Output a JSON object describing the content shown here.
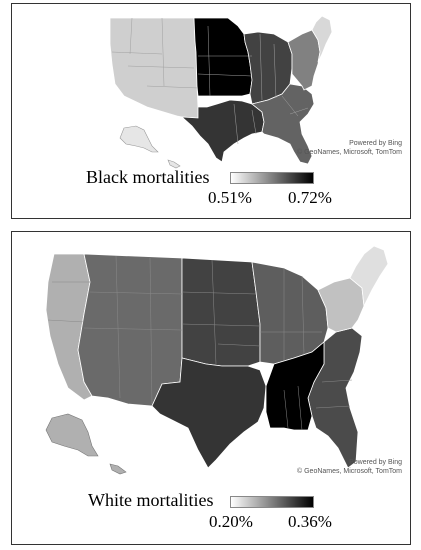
{
  "maps": [
    {
      "legend_title": "Black mortalities",
      "legend_min": "0.51%",
      "legend_max": "0.72%",
      "credit_line1": "Powered by Bing",
      "credit_line2": "© GeoNames, Microsoft, TomTom",
      "regions": [
        {
          "name": "West",
          "level": 0.12
        },
        {
          "name": "Upper Midwest",
          "level": 1.0
        },
        {
          "name": "Great Lakes",
          "level": 0.72
        },
        {
          "name": "Texas / Gulf",
          "level": 0.78
        },
        {
          "name": "Southeast",
          "level": 0.58
        },
        {
          "name": "Northeast",
          "level": 0.45
        },
        {
          "name": "New England",
          "level": 0.08
        }
      ]
    },
    {
      "legend_title": "White mortalities",
      "legend_min": "0.20%",
      "legend_max": "0.36%",
      "credit_line1": "Powered by Bing",
      "credit_line2": "© GeoNames, Microsoft, TomTom",
      "regions": [
        {
          "name": "Pacific Coast",
          "level": 0.25
        },
        {
          "name": "Mountain West",
          "level": 0.55
        },
        {
          "name": "Great Plains",
          "level": 0.72
        },
        {
          "name": "Midwest",
          "level": 0.6
        },
        {
          "name": "Texas",
          "level": 0.78
        },
        {
          "name": "Tennessee / Mississippi / Alabama",
          "level": 1.0
        },
        {
          "name": "Southeast",
          "level": 0.68
        },
        {
          "name": "New York / Pennsylvania",
          "level": 0.18
        },
        {
          "name": "New England",
          "level": 0.05
        }
      ]
    }
  ]
}
